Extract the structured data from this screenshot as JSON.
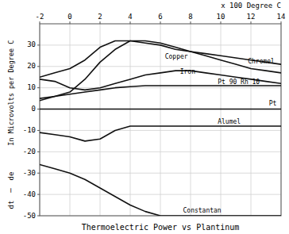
{
  "chart_data": {
    "type": "line",
    "title": "Thermoelectric Power vs Plantinum",
    "x_label": "x 100 Degree C",
    "y_label": "In Microvolts per Degree C",
    "annotations": [
      {
        "text": "de"
      },
      {
        "text": "─"
      },
      {
        "text": "dt"
      }
    ],
    "xlim": [
      -2,
      14
    ],
    "ylim": [
      -50,
      40
    ],
    "xticks": [
      -2,
      0,
      2,
      4,
      6,
      8,
      10,
      12,
      14
    ],
    "yticks": [
      -50,
      -40,
      -30,
      -20,
      -10,
      0,
      10,
      20,
      30
    ],
    "grid": true,
    "color": "#111111",
    "series": [
      {
        "name": "Chromel",
        "x": [
          -2,
          -1,
          0,
          1,
          2,
          3,
          4,
          5,
          6,
          7,
          8,
          9,
          10,
          11,
          12,
          13,
          14
        ],
        "values": [
          15,
          17,
          19,
          23,
          29,
          32,
          32,
          31,
          30,
          28,
          27,
          26,
          25,
          24,
          23,
          22,
          21
        ],
        "label_x": 11.8,
        "label_y": 22.5
      },
      {
        "name": "Copper",
        "x": [
          -2,
          -1,
          0,
          1,
          2,
          3,
          4,
          5,
          6,
          7,
          8,
          9,
          10,
          11,
          12,
          13,
          14
        ],
        "values": [
          4,
          6,
          8,
          14,
          22,
          28,
          32,
          32,
          31,
          29,
          27,
          25,
          23,
          21,
          19,
          18,
          17
        ],
        "label_x": 6.3,
        "label_y": 24.5
      },
      {
        "name": "Iron",
        "x": [
          -2,
          -1,
          0,
          1,
          2,
          3,
          4,
          5,
          6,
          7,
          8,
          9,
          10,
          11,
          12,
          13,
          14
        ],
        "values": [
          14,
          13,
          10,
          9,
          10,
          12,
          14,
          16,
          17,
          18,
          18,
          17,
          16,
          15,
          14,
          13,
          12
        ],
        "label_x": 7.3,
        "label_y": 17.5
      },
      {
        "name": "Pt 90 Rh 10",
        "x": [
          -2,
          -1,
          0,
          1,
          2,
          3,
          4,
          5,
          6,
          7,
          8,
          9,
          10,
          11,
          12,
          13,
          14
        ],
        "values": [
          5,
          6,
          7,
          8,
          9,
          10,
          10.5,
          11,
          11,
          11,
          11,
          11,
          11,
          11,
          11,
          11,
          11
        ],
        "label_x": 9.8,
        "label_y": 12.5
      },
      {
        "name": "Pt",
        "x": [
          -2,
          14
        ],
        "values": [
          0,
          0
        ],
        "label_x": 13.2,
        "label_y": 2.5
      },
      {
        "name": "Alumel",
        "x": [
          -2,
          -1,
          0,
          1,
          2,
          3,
          4,
          5,
          6,
          7,
          8,
          9,
          10,
          11,
          12,
          13,
          14
        ],
        "values": [
          -11,
          -12,
          -13,
          -15,
          -14,
          -10,
          -8,
          -8,
          -8,
          -8,
          -8,
          -8,
          -8,
          -8,
          -8,
          -8,
          -8
        ],
        "label_x": 9.8,
        "label_y": -6.0
      },
      {
        "name": "Constantan",
        "x": [
          -2,
          -1,
          0,
          1,
          2,
          3,
          4,
          5,
          6,
          7,
          8,
          9,
          10,
          11,
          12,
          13,
          14
        ],
        "values": [
          -26,
          -28,
          -30,
          -33,
          -37,
          -41,
          -45,
          -48,
          -50,
          -50,
          -50,
          -50,
          -50,
          -50,
          -50,
          -50,
          -50
        ],
        "label_x": 7.5,
        "label_y": -47.5
      }
    ]
  }
}
